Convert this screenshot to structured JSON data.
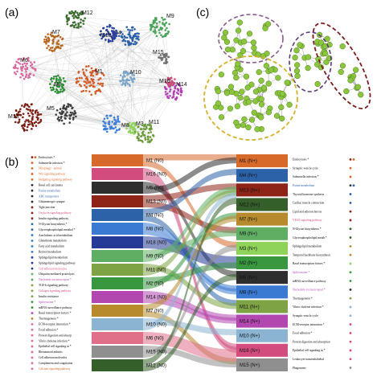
{
  "panels": {
    "a": "(a)",
    "b": "(b)",
    "c": "(c)"
  },
  "network_modules": [
    {
      "id": "M1",
      "color": "#d35d2a"
    },
    {
      "id": "M2",
      "color": "#2f8f3a"
    },
    {
      "id": "M3",
      "color": "#8fd35a"
    },
    {
      "id": "M4",
      "color": "#2b5fa7"
    },
    {
      "id": "M5",
      "color": "#3d3d3d"
    },
    {
      "id": "M6",
      "color": "#d96ba0"
    },
    {
      "id": "M7",
      "color": "#b5651d"
    },
    {
      "id": "M8",
      "color": "#3d7fd9"
    },
    {
      "id": "M9",
      "color": "#4aa35a"
    },
    {
      "id": "M10",
      "color": "#7aa3c7"
    },
    {
      "id": "M11",
      "color": "#6a9a3a"
    },
    {
      "id": "M12",
      "color": "#3c6b2e"
    },
    {
      "id": "M13",
      "color": "#7b1d12"
    },
    {
      "id": "M14",
      "color": "#b23fb3"
    },
    {
      "id": "M15",
      "color": "#707070"
    },
    {
      "id": "M16",
      "color": "#c84f7a"
    },
    {
      "id": "M18",
      "color": "#2a3f9e"
    }
  ],
  "sankey": {
    "left": [
      {
        "label": "M1 (N0)",
        "color": "#d7692b"
      },
      {
        "label": "M16 (N0)",
        "color": "#d24c7d"
      },
      {
        "label": "M5 (N0)",
        "color": "#2e2e2e"
      },
      {
        "label": "M13 (N0)",
        "color": "#8e2417"
      },
      {
        "label": "M4 (N0)",
        "color": "#2c62a8"
      },
      {
        "label": "M8 (N0)",
        "color": "#3a7ad2"
      },
      {
        "label": "M18 (N0)",
        "color": "#253a96"
      },
      {
        "label": "M9 (N0)",
        "color": "#5fae64"
      },
      {
        "label": "M11 (N0)",
        "color": "#7da344"
      },
      {
        "label": "M2 (N0)",
        "color": "#38973f"
      },
      {
        "label": "M14 (N0)",
        "color": "#b347b0"
      },
      {
        "label": "M7 (N0)",
        "color": "#b78a2e"
      },
      {
        "label": "M10 (N0)",
        "color": "#8ab4d1"
      },
      {
        "label": "M6 (N0)",
        "color": "#e06f8a"
      },
      {
        "label": "M15 (N0)",
        "color": "#8f8f8f"
      },
      {
        "label": "M12 (N0)",
        "color": "#345e2a"
      }
    ],
    "right": [
      {
        "label": "M1 (N+)",
        "color": "#d7692b"
      },
      {
        "label": "M4 (N+)",
        "color": "#2c62a8"
      },
      {
        "label": "M13 (N+)",
        "color": "#8e2417"
      },
      {
        "label": "M12 (N+)",
        "color": "#345e2a"
      },
      {
        "label": "M7 (N+)",
        "color": "#b78a2e"
      },
      {
        "label": "M9 (N+)",
        "color": "#5fae64"
      },
      {
        "label": "M3 (N+)",
        "color": "#8fd35a"
      },
      {
        "label": "M2 (N+)",
        "color": "#38973f"
      },
      {
        "label": "M5 (N+)",
        "color": "#2e2e2e"
      },
      {
        "label": "M8 (N+)",
        "color": "#3a7ad2"
      },
      {
        "label": "M11 (N+)",
        "color": "#7da344"
      },
      {
        "label": "M14 (N+)",
        "color": "#b347b0"
      },
      {
        "label": "M10 (N+)",
        "color": "#8ab4d1"
      },
      {
        "label": "M16 (N+)",
        "color": "#d24c7d"
      },
      {
        "label": "M15 (N+)",
        "color": "#8f8f8f"
      }
    ],
    "left_pathways": [
      {
        "text": "Endocytosis *",
        "color": "#000000",
        "dots": [
          "#8e2417",
          "#d7692b"
        ]
      },
      {
        "text": "Salmonella infection *",
        "color": "#000000",
        "dots": [
          "#d7692b"
        ]
      },
      {
        "text": "Mitophagy - animal",
        "color": "#d7692b",
        "dots": [
          "#d7692b"
        ]
      },
      {
        "text": "Wnt signaling pathway",
        "color": "#d7692b",
        "dots": [
          "#d7692b"
        ]
      },
      {
        "text": "Hedgehog signaling pathway",
        "color": "#d7692b",
        "dots": [
          "#d7692b"
        ]
      },
      {
        "text": "Basal cell carcinoma",
        "color": "#000000",
        "dots": [
          "#2e2e2e"
        ]
      },
      {
        "text": "Purine metabolism",
        "color": "#2c62a8",
        "dots": [
          "#2e2e2e"
        ]
      },
      {
        "text": "ABC transporters",
        "color": "#2c62a8",
        "dots": [
          "#2e2e2e"
        ]
      },
      {
        "text": "Glutamatergic synapse",
        "color": "#000000",
        "dots": [
          "#2e2e2e"
        ]
      },
      {
        "text": "Tight junction",
        "color": "#000000",
        "dots": [
          "#8e2417"
        ]
      },
      {
        "text": "Oxytocin signaling pathway",
        "color": "#d24c7d",
        "dots": [
          "#8e2417"
        ]
      },
      {
        "text": "Insulin signaling pathway",
        "color": "#000000",
        "dots": [
          "#8e2417"
        ]
      },
      {
        "text": "N-Glycan biosynthesis *",
        "color": "#000000",
        "dots": [
          "#2c62a8"
        ]
      },
      {
        "text": "Glycerophospholipid metabol *",
        "color": "#000000",
        "dots": [
          "#2c62a8"
        ]
      },
      {
        "text": "Arachidonic acid metabolism",
        "color": "#000000",
        "dots": [
          "#3a7ad2"
        ]
      },
      {
        "text": "Glutathione metabolism",
        "color": "#000000",
        "dots": [
          "#3a7ad2"
        ]
      },
      {
        "text": "Fatty acid metabolism",
        "color": "#000000",
        "dots": [
          "#3a7ad2"
        ]
      },
      {
        "text": "Retinol metabolism",
        "color": "#000000",
        "dots": [
          "#3a7ad2"
        ]
      },
      {
        "text": "Sphingolipid metabolism",
        "color": "#000000",
        "dots": [
          "#253a96"
        ]
      },
      {
        "text": "Sphingolipid signaling pathway",
        "color": "#000000",
        "dots": [
          "#253a96"
        ]
      },
      {
        "text": "Cell adhesion molecules",
        "color": "#d24c7d",
        "dots": [
          "#253a96"
        ]
      },
      {
        "text": "Ubiquitin mediated proteolysis",
        "color": "#000000",
        "dots": [
          "#5fae64"
        ]
      },
      {
        "text": "Nucleotide excision repair *",
        "color": "#b347b0",
        "dots": [
          "#5fae64"
        ]
      },
      {
        "text": "TGF-b signaling pathway",
        "color": "#000000",
        "dots": [
          "#7da344"
        ]
      },
      {
        "text": "Collagen signaling pathway",
        "color": "#d24c7d",
        "dots": [
          "#7da344"
        ]
      },
      {
        "text": "Insulin resistance",
        "color": "#000000",
        "dots": [
          "#7da344"
        ]
      },
      {
        "text": "Spliceosome *",
        "color": "#b347b0",
        "dots": [
          "#38973f"
        ]
      },
      {
        "text": "mRNA surveillance pathway",
        "color": "#000000",
        "dots": [
          "#38973f"
        ]
      },
      {
        "text": "Basal transcription factors *",
        "color": "#000000",
        "dots": [
          "#b347b0"
        ]
      },
      {
        "text": "Thermogenesis *",
        "color": "#000000",
        "dots": [
          "#b78a2e"
        ]
      },
      {
        "text": "ECM-receptor interaction *",
        "color": "#000000",
        "dots": [
          "#e06f8a"
        ]
      },
      {
        "text": "Focal adhesion *",
        "color": "#000000",
        "dots": [
          "#e06f8a"
        ]
      },
      {
        "text": "Protein digestion and absorp",
        "color": "#000000",
        "dots": [
          "#e06f8a"
        ]
      },
      {
        "text": "Vibrio cholerae infection *",
        "color": "#000000",
        "dots": [
          "#e06f8a"
        ]
      },
      {
        "text": "Epithelial cell signaling in *",
        "color": "#000000",
        "dots": [
          "#e06f8a"
        ]
      },
      {
        "text": "Rheumatoid arthritis",
        "color": "#000000",
        "dots": [
          "#e06f8a"
        ]
      },
      {
        "text": "Cell adhesion molecules",
        "color": "#000000",
        "dots": [
          "#e06f8a"
        ]
      },
      {
        "text": "Complement and coagulation",
        "color": "#000000",
        "dots": [
          "#e06f8a"
        ]
      },
      {
        "text": "Calcium signaling pathway",
        "color": "#d7692b",
        "dots": [
          "#e06f8a"
        ]
      }
    ],
    "right_pathways": [
      {
        "text": "Endocytosis *",
        "color": "#000000",
        "dots": [
          "#8e2417",
          "#d7692b"
        ]
      },
      {
        "text": "Synaptic vesicle cycle",
        "color": "#000000",
        "dots": [
          "#d7692b"
        ]
      },
      {
        "text": "Salmonella infection *",
        "color": "#000000",
        "dots": [
          "#d7692b"
        ]
      },
      {
        "text": "Purine metabolism",
        "color": "#2c62a8",
        "dots": [
          "#2e2e2e",
          "#2c62a8"
        ]
      },
      {
        "text": "Thyroid hormone synthesis",
        "color": "#000000",
        "dots": [
          "#2c62a8"
        ]
      },
      {
        "text": "Cardiac muscle contraction",
        "color": "#000000",
        "dots": [
          "#2c62a8"
        ]
      },
      {
        "text": "Lipid and atherosclerosis",
        "color": "#000000",
        "dots": [
          "#8e2417"
        ]
      },
      {
        "text": "VEGF signaling pathway",
        "color": "#d24c7d",
        "dots": [
          "#8e2417"
        ]
      },
      {
        "text": "N-Glycan biosynthesis *",
        "color": "#000000",
        "dots": [
          "#345e2a"
        ]
      },
      {
        "text": "Glycerophospholipid metab *",
        "color": "#000000",
        "dots": [
          "#345e2a"
        ]
      },
      {
        "text": "Sphingolipid metabolism",
        "color": "#000000",
        "dots": [
          "#b78a2e"
        ]
      },
      {
        "text": "Temporal backbone biosynthesis",
        "color": "#000000",
        "dots": [
          "#b78a2e"
        ]
      },
      {
        "text": "Basal transcription factors *",
        "color": "#000000",
        "dots": [
          "#8fd35a"
        ]
      },
      {
        "text": "Spliceosome *",
        "color": "#b347b0",
        "dots": [
          "#38973f"
        ]
      },
      {
        "text": "mRNA surveillance pathway",
        "color": "#000000",
        "dots": [
          "#38973f"
        ]
      },
      {
        "text": "Nucleotide excision repair *",
        "color": "#b347b0",
        "dots": [
          "#2e2e2e"
        ]
      },
      {
        "text": "Thermogenesis *",
        "color": "#000000",
        "dots": [
          "#7da344"
        ]
      },
      {
        "text": "Vibrio cholerae infection *",
        "color": "#000000",
        "dots": [
          "#8ab4d1"
        ]
      },
      {
        "text": "Synaptic vesicle cycle",
        "color": "#000000",
        "dots": [
          "#8ab4d1"
        ]
      },
      {
        "text": "ECM-receptor interaction *",
        "color": "#000000",
        "dots": [
          "#d24c7d"
        ]
      },
      {
        "text": "Focal adhesion *",
        "color": "#000000",
        "dots": [
          "#d24c7d"
        ]
      },
      {
        "text": "Protein digestion and absorption",
        "color": "#000000",
        "dots": [
          "#d24c7d"
        ]
      },
      {
        "text": "Epithelial cell signaling in *",
        "color": "#000000",
        "dots": [
          "#d24c7d"
        ]
      },
      {
        "text": "Leukocyte transendothelial",
        "color": "#000000",
        "dots": [
          "#d24c7d"
        ]
      },
      {
        "text": "Phagosome",
        "color": "#000000",
        "dots": [
          "#8f8f8f"
        ]
      }
    ]
  }
}
